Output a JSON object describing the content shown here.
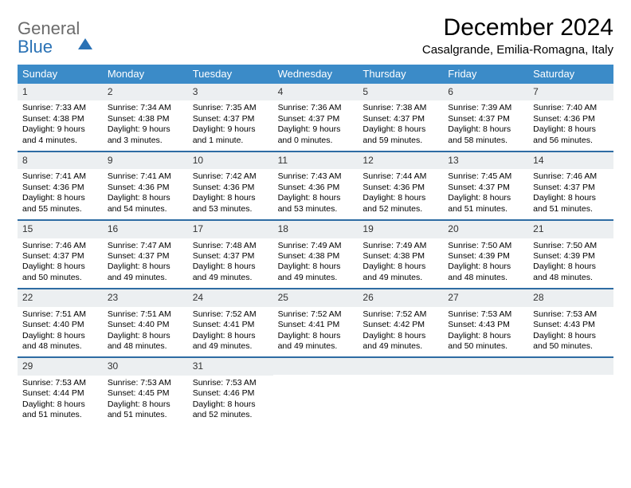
{
  "logo": {
    "line1": "General",
    "line2": "Blue"
  },
  "title": "December 2024",
  "location": "Casalgrande, Emilia-Romagna, Italy",
  "colors": {
    "header_bg": "#3b8bc8",
    "header_text": "#ffffff",
    "week_divider": "#2e6ca3",
    "daynum_bg": "#eceff1",
    "logo_gray": "#6b6b6b",
    "logo_blue": "#2a72b5",
    "page_bg": "#ffffff"
  },
  "day_names": [
    "Sunday",
    "Monday",
    "Tuesday",
    "Wednesday",
    "Thursday",
    "Friday",
    "Saturday"
  ],
  "weeks": [
    [
      {
        "n": "1",
        "sr": "7:33 AM",
        "ss": "4:38 PM",
        "dl": "9 hours and 4 minutes."
      },
      {
        "n": "2",
        "sr": "7:34 AM",
        "ss": "4:38 PM",
        "dl": "9 hours and 3 minutes."
      },
      {
        "n": "3",
        "sr": "7:35 AM",
        "ss": "4:37 PM",
        "dl": "9 hours and 1 minute."
      },
      {
        "n": "4",
        "sr": "7:36 AM",
        "ss": "4:37 PM",
        "dl": "9 hours and 0 minutes."
      },
      {
        "n": "5",
        "sr": "7:38 AM",
        "ss": "4:37 PM",
        "dl": "8 hours and 59 minutes."
      },
      {
        "n": "6",
        "sr": "7:39 AM",
        "ss": "4:37 PM",
        "dl": "8 hours and 58 minutes."
      },
      {
        "n": "7",
        "sr": "7:40 AM",
        "ss": "4:36 PM",
        "dl": "8 hours and 56 minutes."
      }
    ],
    [
      {
        "n": "8",
        "sr": "7:41 AM",
        "ss": "4:36 PM",
        "dl": "8 hours and 55 minutes."
      },
      {
        "n": "9",
        "sr": "7:41 AM",
        "ss": "4:36 PM",
        "dl": "8 hours and 54 minutes."
      },
      {
        "n": "10",
        "sr": "7:42 AM",
        "ss": "4:36 PM",
        "dl": "8 hours and 53 minutes."
      },
      {
        "n": "11",
        "sr": "7:43 AM",
        "ss": "4:36 PM",
        "dl": "8 hours and 53 minutes."
      },
      {
        "n": "12",
        "sr": "7:44 AM",
        "ss": "4:36 PM",
        "dl": "8 hours and 52 minutes."
      },
      {
        "n": "13",
        "sr": "7:45 AM",
        "ss": "4:37 PM",
        "dl": "8 hours and 51 minutes."
      },
      {
        "n": "14",
        "sr": "7:46 AM",
        "ss": "4:37 PM",
        "dl": "8 hours and 51 minutes."
      }
    ],
    [
      {
        "n": "15",
        "sr": "7:46 AM",
        "ss": "4:37 PM",
        "dl": "8 hours and 50 minutes."
      },
      {
        "n": "16",
        "sr": "7:47 AM",
        "ss": "4:37 PM",
        "dl": "8 hours and 49 minutes."
      },
      {
        "n": "17",
        "sr": "7:48 AM",
        "ss": "4:37 PM",
        "dl": "8 hours and 49 minutes."
      },
      {
        "n": "18",
        "sr": "7:49 AM",
        "ss": "4:38 PM",
        "dl": "8 hours and 49 minutes."
      },
      {
        "n": "19",
        "sr": "7:49 AM",
        "ss": "4:38 PM",
        "dl": "8 hours and 49 minutes."
      },
      {
        "n": "20",
        "sr": "7:50 AM",
        "ss": "4:39 PM",
        "dl": "8 hours and 48 minutes."
      },
      {
        "n": "21",
        "sr": "7:50 AM",
        "ss": "4:39 PM",
        "dl": "8 hours and 48 minutes."
      }
    ],
    [
      {
        "n": "22",
        "sr": "7:51 AM",
        "ss": "4:40 PM",
        "dl": "8 hours and 48 minutes."
      },
      {
        "n": "23",
        "sr": "7:51 AM",
        "ss": "4:40 PM",
        "dl": "8 hours and 48 minutes."
      },
      {
        "n": "24",
        "sr": "7:52 AM",
        "ss": "4:41 PM",
        "dl": "8 hours and 49 minutes."
      },
      {
        "n": "25",
        "sr": "7:52 AM",
        "ss": "4:41 PM",
        "dl": "8 hours and 49 minutes."
      },
      {
        "n": "26",
        "sr": "7:52 AM",
        "ss": "4:42 PM",
        "dl": "8 hours and 49 minutes."
      },
      {
        "n": "27",
        "sr": "7:53 AM",
        "ss": "4:43 PM",
        "dl": "8 hours and 50 minutes."
      },
      {
        "n": "28",
        "sr": "7:53 AM",
        "ss": "4:43 PM",
        "dl": "8 hours and 50 minutes."
      }
    ],
    [
      {
        "n": "29",
        "sr": "7:53 AM",
        "ss": "4:44 PM",
        "dl": "8 hours and 51 minutes."
      },
      {
        "n": "30",
        "sr": "7:53 AM",
        "ss": "4:45 PM",
        "dl": "8 hours and 51 minutes."
      },
      {
        "n": "31",
        "sr": "7:53 AM",
        "ss": "4:46 PM",
        "dl": "8 hours and 52 minutes."
      },
      {
        "empty": true
      },
      {
        "empty": true
      },
      {
        "empty": true
      },
      {
        "empty": true
      }
    ]
  ],
  "labels": {
    "sunrise": "Sunrise:",
    "sunset": "Sunset:",
    "daylight": "Daylight:"
  }
}
